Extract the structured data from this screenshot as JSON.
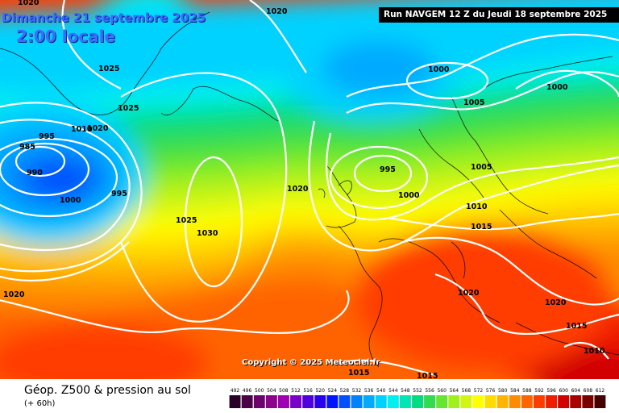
{
  "header": {
    "date_title": "Dimanche 21 septembre 2025",
    "time_title": "2:00 locale",
    "run_banner": "Run NAVGEM 12 Z du Jeudi 18 septembre 2025"
  },
  "footer": {
    "copyright": "Copyright © 2025 Meteociel.fr",
    "legend_title": "Géop. Z500 & pression au sol",
    "legend_subtitle": "(+ 60h)"
  },
  "scale": {
    "ticks": [
      "492",
      "496",
      "500",
      "504",
      "508",
      "512",
      "516",
      "520",
      "524",
      "528",
      "532",
      "536",
      "540",
      "544",
      "548",
      "552",
      "556",
      "560",
      "564",
      "568",
      "572",
      "576",
      "580",
      "584",
      "588",
      "592",
      "596",
      "600",
      "604",
      "608",
      "612"
    ],
    "colors": [
      "#280028",
      "#4b0048",
      "#6e006e",
      "#8c008c",
      "#a000b4",
      "#7800c8",
      "#5000dc",
      "#2800f0",
      "#0014ff",
      "#0050ff",
      "#0082ff",
      "#00aaff",
      "#00d2ff",
      "#00f0f0",
      "#00e6b4",
      "#00dc82",
      "#32dc50",
      "#64e632",
      "#a0f01e",
      "#d2f514",
      "#ffff00",
      "#ffdc00",
      "#ffb400",
      "#ff8c00",
      "#ff6400",
      "#ff3c00",
      "#f01e00",
      "#d20000",
      "#aa0000",
      "#780000",
      "#460000"
    ]
  },
  "isobars": [
    {
      "text": "1020",
      "key": "l1"
    },
    {
      "text": "1020",
      "key": "l2"
    },
    {
      "text": "1025",
      "key": "l3"
    },
    {
      "text": "1025",
      "key": "l4"
    },
    {
      "text": "995",
      "key": "l5"
    },
    {
      "text": "1010",
      "key": "l6"
    },
    {
      "text": "1020",
      "key": "l7"
    },
    {
      "text": "985",
      "key": "l8"
    },
    {
      "text": "990",
      "key": "l9"
    },
    {
      "text": "1000",
      "key": "l10"
    },
    {
      "text": "995",
      "key": "l11"
    },
    {
      "text": "1025",
      "key": "l12"
    },
    {
      "text": "1030",
      "key": "l13"
    },
    {
      "text": "1020",
      "key": "l14"
    },
    {
      "text": "1020",
      "key": "l15"
    },
    {
      "text": "1000",
      "key": "l16"
    },
    {
      "text": "1005",
      "key": "l17"
    },
    {
      "text": "1000",
      "key": "l18"
    },
    {
      "text": "995",
      "key": "l19"
    },
    {
      "text": "1000",
      "key": "l20"
    },
    {
      "text": "1005",
      "key": "l21"
    },
    {
      "text": "1010",
      "key": "l22"
    },
    {
      "text": "1015",
      "key": "l23"
    },
    {
      "text": "1020",
      "key": "l24"
    },
    {
      "text": "1020",
      "key": "l25"
    },
    {
      "text": "1015",
      "key": "l26"
    },
    {
      "text": "1010",
      "key": "l27"
    },
    {
      "text": "1015",
      "key": "l28"
    },
    {
      "text": "1015",
      "key": "l29"
    }
  ]
}
